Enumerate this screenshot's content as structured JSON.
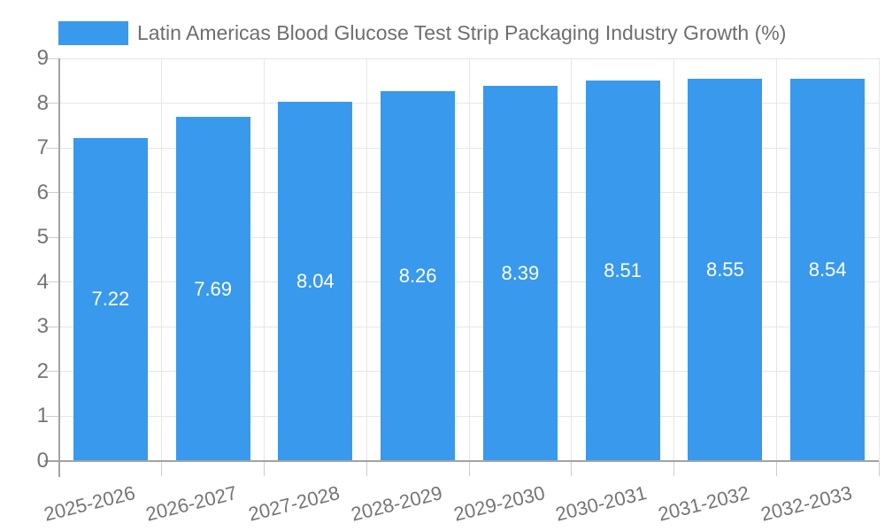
{
  "chart_data": {
    "type": "bar",
    "title": "Latin Americas Blood Glucose Test Strip Packaging Industry Growth (%)",
    "categories": [
      "2025-2026",
      "2026-2027",
      "2027-2028",
      "2028-2029",
      "2029-2030",
      "2030-2031",
      "2031-2032",
      "2032-2033"
    ],
    "values": [
      7.22,
      7.69,
      8.04,
      8.26,
      8.39,
      8.51,
      8.55,
      8.54
    ],
    "value_labels": [
      "7.22",
      "7.69",
      "8.04",
      "8.26",
      "8.39",
      "8.51",
      "8.55",
      "8.54"
    ],
    "yticks": [
      "0",
      "1",
      "2",
      "3",
      "4",
      "5",
      "6",
      "7",
      "8",
      "9"
    ],
    "ylim": [
      0,
      9
    ],
    "xlabel": "",
    "ylabel": "",
    "grid": true,
    "legend_position": "top",
    "colors": {
      "bar": "#3999ec",
      "value_label": "#ffffff",
      "axis_text": "#757575",
      "legend_text": "#6e6e6e",
      "gridline": "#e6e6e6",
      "axis_line": "#a3a3a3",
      "background": "#ffffff"
    }
  }
}
